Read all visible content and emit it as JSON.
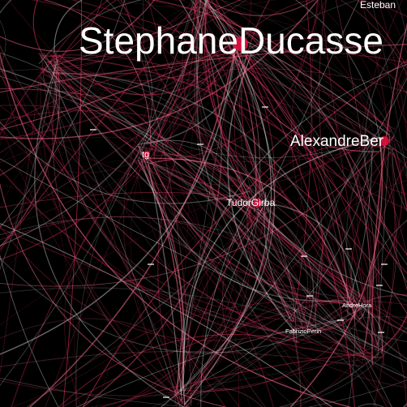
{
  "graph": {
    "background": "#000000",
    "edge_colors": [
      "#e8365f",
      "#c2294f",
      "#ff6f8d",
      "#f2f2f2"
    ],
    "nodes": [
      {
        "id": "stephaneducasse",
        "label": "StephaneDucasse",
        "color": "#e0103c"
      },
      {
        "id": "esteban",
        "label": "Esteban",
        "color": "#ffffff"
      },
      {
        "id": "alexandreber",
        "label": "AlexandreBer",
        "color": "#e0103c"
      },
      {
        "id": "tg",
        "label": "tg",
        "color": "#e0103c"
      },
      {
        "id": "tudorgirba",
        "label": "TudorGirba",
        "color": "#e0103c"
      },
      {
        "id": "andrehora",
        "label": "AndreHora",
        "color": "#ffffff"
      },
      {
        "id": "fabrizioperin",
        "label": "FabrizioPerin",
        "color": "#ffffff"
      }
    ]
  }
}
